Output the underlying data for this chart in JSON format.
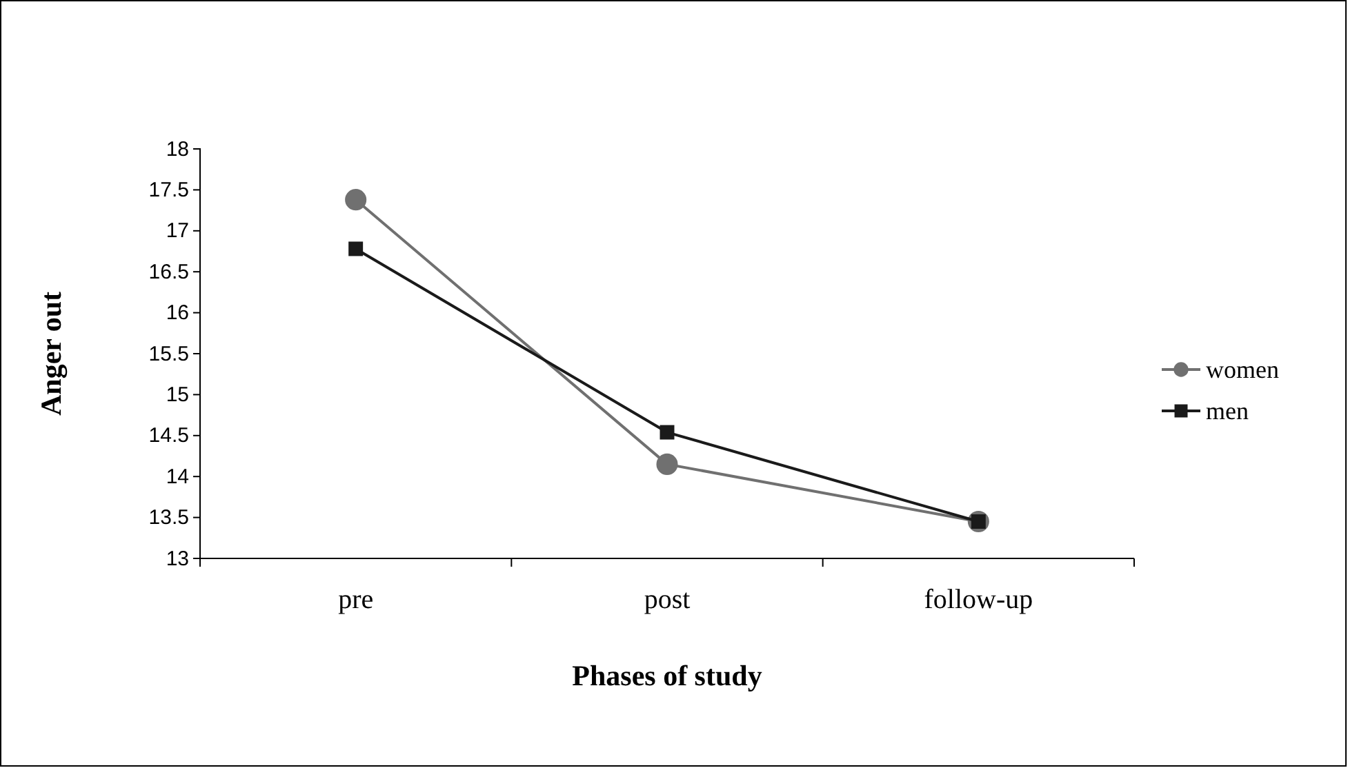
{
  "chart_data": {
    "type": "line",
    "xlabel": "Phases of study",
    "ylabel": "Anger out",
    "categories": [
      "pre",
      "post",
      "follow-up"
    ],
    "series": [
      {
        "name": "women",
        "color": "#707070",
        "values": [
          17.38,
          14.15,
          13.45
        ],
        "marker": "circle"
      },
      {
        "name": "men",
        "color": "#1a1a1a",
        "values": [
          16.78,
          14.54,
          13.45
        ],
        "marker": "square"
      }
    ],
    "ylim": [
      13,
      18
    ],
    "yticks": [
      13,
      13.5,
      14,
      14.5,
      15,
      15.5,
      16,
      16.5,
      17,
      17.5,
      18
    ],
    "grid": false,
    "legend": "right",
    "line_style": "solid"
  }
}
